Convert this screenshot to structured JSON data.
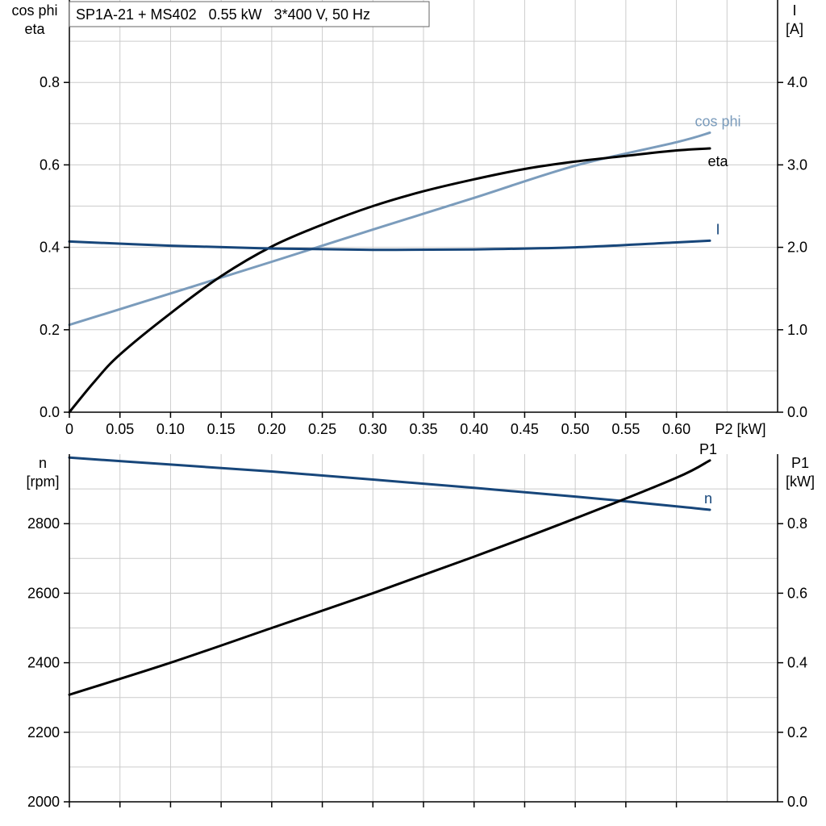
{
  "chart_data": [
    {
      "type": "line",
      "title": "SP1A-21 + MS402   0.55 kW   3*400 V, 50 Hz",
      "xlabel": "P2 [kW]",
      "ylabel_left": [
        "cos phi",
        "eta"
      ],
      "ylabel_right": [
        "I",
        "[A]"
      ],
      "xlim": [
        0,
        0.7
      ],
      "ylim_left": [
        0,
        1.0
      ],
      "ylim_right": [
        0,
        5.0
      ],
      "x_ticks": [
        "0",
        "0.05",
        "0.10",
        "0.15",
        "0.20",
        "0.25",
        "0.30",
        "0.35",
        "0.40",
        "0.45",
        "0.50",
        "0.55",
        "0.60"
      ],
      "x_tick_values": [
        0,
        0.05,
        0.1,
        0.15,
        0.2,
        0.25,
        0.3,
        0.35,
        0.4,
        0.45,
        0.5,
        0.55,
        0.6
      ],
      "y_ticks_left": [
        "0.0",
        "0.2",
        "0.4",
        "0.6",
        "0.8"
      ],
      "y_tick_values_left": [
        0,
        0.2,
        0.4,
        0.6,
        0.8
      ],
      "y_ticks_right": [
        "0.0",
        "1.0",
        "2.0",
        "3.0",
        "4.0"
      ],
      "y_tick_values_right": [
        0,
        1,
        2,
        3,
        4
      ],
      "grid": true,
      "series": [
        {
          "name": "cos phi",
          "axis": "left",
          "color": "#7b9cbc",
          "x": [
            0,
            0.1,
            0.2,
            0.3,
            0.4,
            0.5,
            0.6,
            0.633
          ],
          "values": [
            0.212,
            0.288,
            0.365,
            0.443,
            0.52,
            0.598,
            0.655,
            0.678
          ]
        },
        {
          "name": "eta",
          "axis": "left",
          "color": "#000000",
          "x": [
            0,
            0.025,
            0.05,
            0.1,
            0.15,
            0.2,
            0.25,
            0.3,
            0.35,
            0.4,
            0.45,
            0.5,
            0.55,
            0.6,
            0.633
          ],
          "values": [
            0,
            0.075,
            0.14,
            0.24,
            0.33,
            0.402,
            0.455,
            0.5,
            0.536,
            0.565,
            0.59,
            0.608,
            0.622,
            0.635,
            0.64
          ]
        },
        {
          "name": "I",
          "axis": "right",
          "color": "#17467a",
          "x": [
            0,
            0.1,
            0.2,
            0.3,
            0.4,
            0.5,
            0.6,
            0.633
          ],
          "values": [
            2.07,
            2.02,
            1.985,
            1.97,
            1.975,
            2.0,
            2.06,
            2.08
          ]
        }
      ]
    },
    {
      "type": "line",
      "xlim": [
        0,
        0.7
      ],
      "ylabel_left": [
        "n",
        "[rpm]"
      ],
      "ylabel_right": [
        "P1",
        "[kW]"
      ],
      "ylim_left": [
        2000,
        3000
      ],
      "ylim_right": [
        0,
        1.0
      ],
      "y_ticks_left": [
        "2000",
        "2200",
        "2400",
        "2600",
        "2800"
      ],
      "y_tick_values_left": [
        2000,
        2200,
        2400,
        2600,
        2800
      ],
      "y_ticks_right": [
        "0.0",
        "0.2",
        "0.4",
        "0.6",
        "0.8"
      ],
      "y_tick_values_right": [
        0,
        0.2,
        0.4,
        0.6,
        0.8
      ],
      "grid": true,
      "series": [
        {
          "name": "n",
          "axis": "left",
          "color": "#17467a",
          "x": [
            0,
            0.1,
            0.2,
            0.3,
            0.4,
            0.5,
            0.6,
            0.633
          ],
          "values": [
            2990,
            2970,
            2950,
            2927,
            2903,
            2878,
            2850,
            2840
          ]
        },
        {
          "name": "P1",
          "axis": "right",
          "color": "#000000",
          "x": [
            0,
            0.1,
            0.2,
            0.3,
            0.4,
            0.5,
            0.6,
            0.633
          ],
          "values": [
            0.308,
            0.4,
            0.5,
            0.6,
            0.705,
            0.815,
            0.932,
            0.982
          ]
        }
      ]
    }
  ]
}
